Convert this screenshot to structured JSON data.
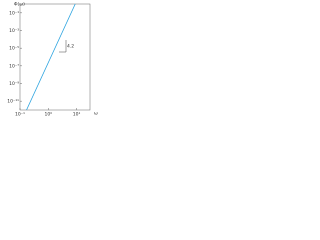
{
  "chart_data": {
    "type": "line",
    "ylabel": "Φ(ω)",
    "xlabel": "ω",
    "log_x": true,
    "log_y": true,
    "x": [
      0.17,
      9
    ],
    "series": [
      {
        "color": "#29a3e0",
        "values": [
          1e-12,
          1
        ]
      }
    ],
    "xlim": [
      0.1,
      30
    ],
    "ylim": [
      1e-12,
      1
    ],
    "xticks": [
      {
        "value": 0.1,
        "label": "10⁻¹"
      },
      {
        "value": 1,
        "label": "10⁰"
      },
      {
        "value": 10,
        "label": "10¹"
      }
    ],
    "yticks": [
      {
        "value": 0.1,
        "label": "10⁻¹"
      },
      {
        "value": 0.001,
        "label": "10⁻³"
      },
      {
        "value": 1e-05,
        "label": "10⁻⁵"
      },
      {
        "value": 1e-07,
        "label": "10⁻⁷"
      },
      {
        "value": 1e-09,
        "label": "10⁻⁹"
      },
      {
        "value": 1e-11,
        "label": "10⁻¹¹"
      }
    ],
    "annotation": "4.2"
  }
}
